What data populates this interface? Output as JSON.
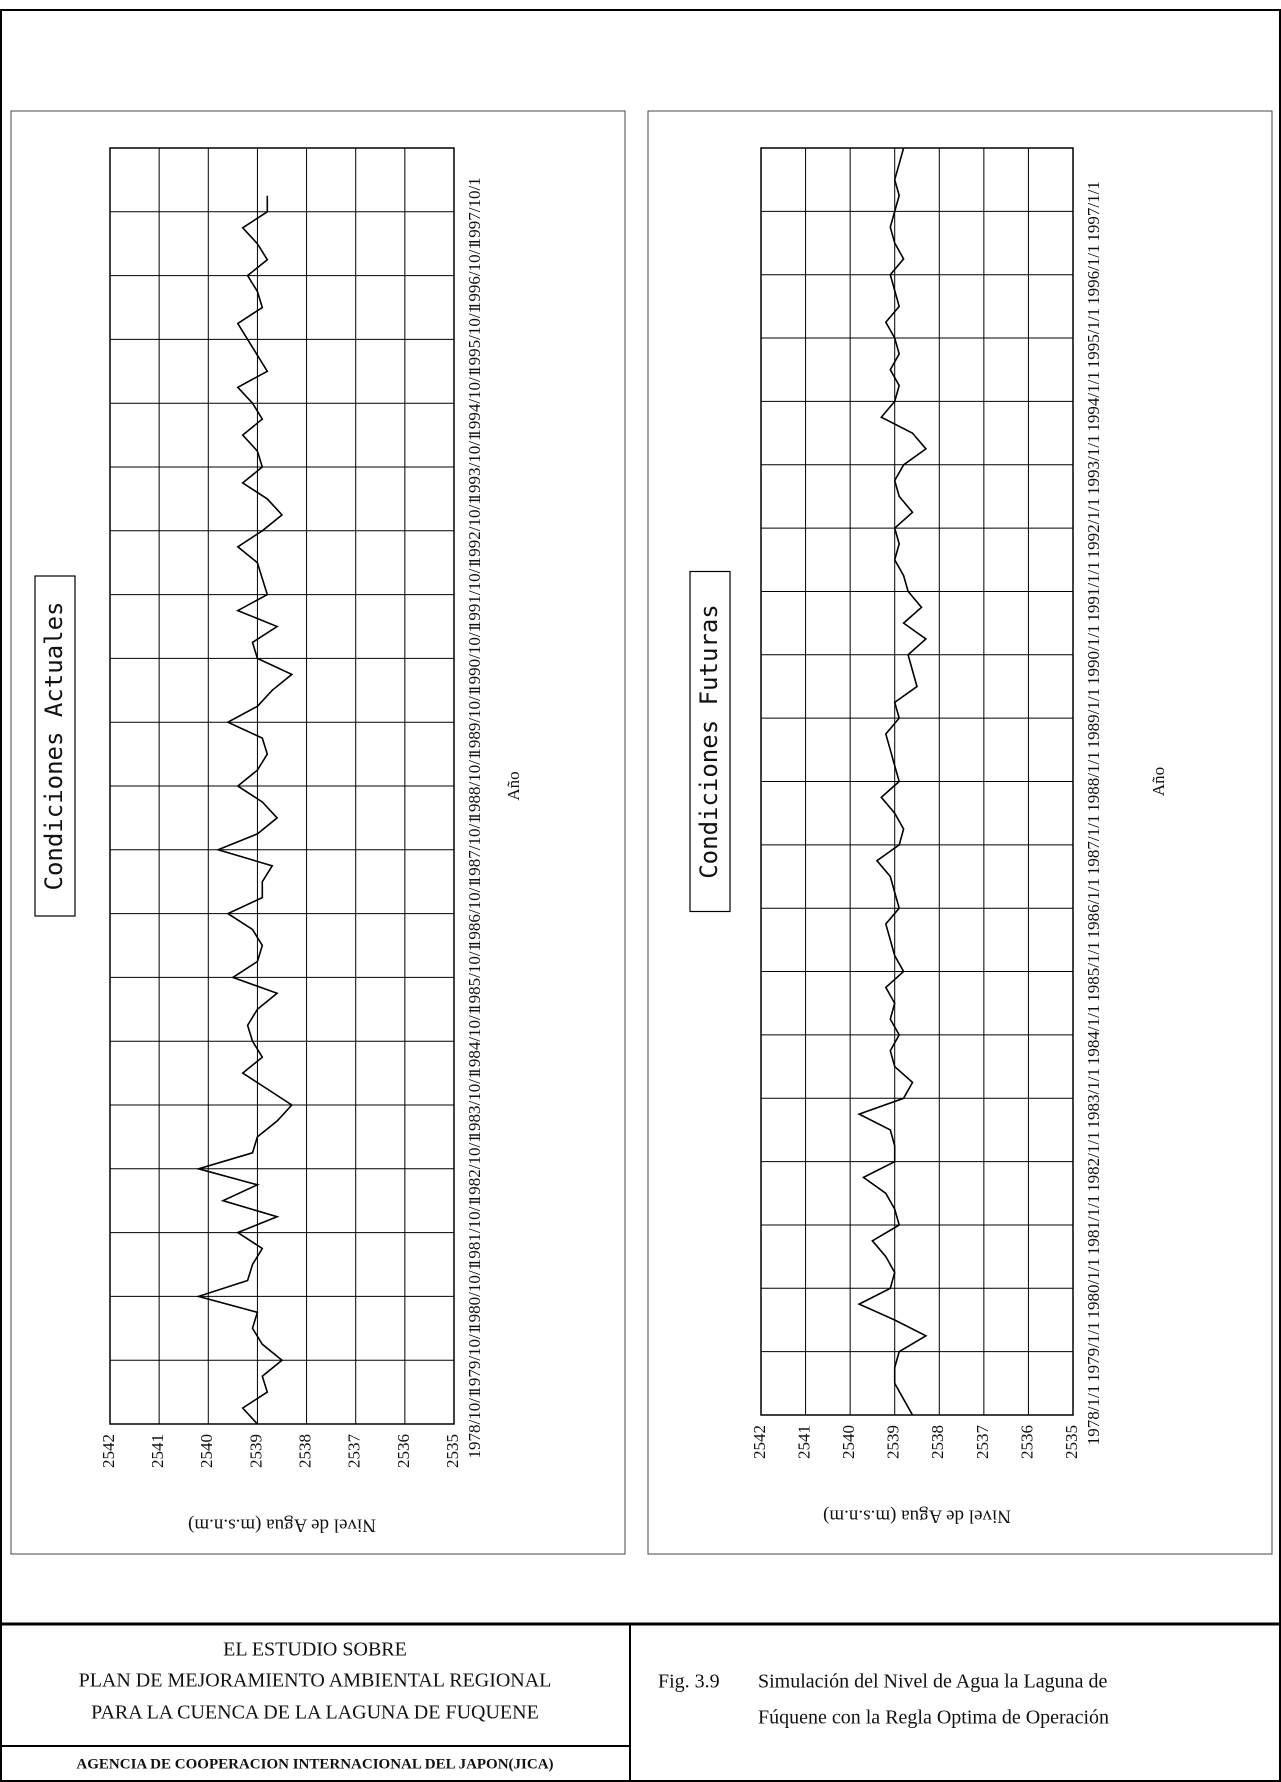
{
  "chart_data": [
    {
      "type": "line",
      "title": "Condiciones Actuales",
      "x_label": "Año",
      "y_label": "Nivel de Agua (m.s.n.m)",
      "color": "#000000",
      "grid": true,
      "xlim": [
        1978.75,
        1998.75
      ],
      "ylim": [
        2535,
        2542
      ],
      "yticks": [
        2535,
        2536,
        2537,
        2538,
        2539,
        2540,
        2541,
        2542
      ],
      "xticks": [
        {
          "value": 1978.75,
          "label": "1978/10/1"
        },
        {
          "value": 1979.75,
          "label": "1979/10/1"
        },
        {
          "value": 1980.75,
          "label": "1980/10/1"
        },
        {
          "value": 1981.75,
          "label": "1981/10/1"
        },
        {
          "value": 1982.75,
          "label": "1982/10/1"
        },
        {
          "value": 1983.75,
          "label": "1983/10/1"
        },
        {
          "value": 1984.75,
          "label": "1984/10/1"
        },
        {
          "value": 1985.75,
          "label": "1985/10/1"
        },
        {
          "value": 1986.75,
          "label": "1986/10/1"
        },
        {
          "value": 1987.75,
          "label": "1987/10/1"
        },
        {
          "value": 1988.75,
          "label": "1988/10/1"
        },
        {
          "value": 1989.75,
          "label": "1989/10/1"
        },
        {
          "value": 1990.75,
          "label": "1990/10/1"
        },
        {
          "value": 1991.75,
          "label": "1991/10/1"
        },
        {
          "value": 1992.75,
          "label": "1992/10/1"
        },
        {
          "value": 1993.75,
          "label": "1993/10/1"
        },
        {
          "value": 1994.75,
          "label": "1994/10/1"
        },
        {
          "value": 1995.75,
          "label": "1995/10/1"
        },
        {
          "value": 1996.75,
          "label": "1996/10/1"
        },
        {
          "value": 1997.75,
          "label": "1997/10/1"
        }
      ],
      "x": [
        1978.75,
        1979,
        1979.25,
        1979.5,
        1979.75,
        1980,
        1980.25,
        1980.5,
        1980.75,
        1981,
        1981.25,
        1981.5,
        1981.75,
        1982,
        1982.25,
        1982.5,
        1982.75,
        1983,
        1983.25,
        1983.5,
        1983.75,
        1984,
        1984.25,
        1984.5,
        1984.75,
        1985,
        1985.25,
        1985.5,
        1985.75,
        1986,
        1986.25,
        1986.5,
        1986.75,
        1987,
        1987.25,
        1987.5,
        1987.75,
        1988,
        1988.25,
        1988.5,
        1988.75,
        1989,
        1989.25,
        1989.5,
        1989.75,
        1990,
        1990.25,
        1990.5,
        1990.75,
        1991,
        1991.25,
        1991.5,
        1991.75,
        1992,
        1992.25,
        1992.5,
        1992.75,
        1993,
        1993.25,
        1993.5,
        1993.75,
        1994,
        1994.25,
        1994.5,
        1994.75,
        1995,
        1995.25,
        1995.5,
        1995.75,
        1996,
        1996.25,
        1996.5,
        1996.75,
        1997,
        1997.25,
        1997.5,
        1997.75,
        1998
      ],
      "values": [
        2539.0,
        2539.3,
        2538.8,
        2538.9,
        2538.5,
        2538.9,
        2539.1,
        2539.0,
        2540.2,
        2539.2,
        2539.1,
        2538.9,
        2539.4,
        2538.6,
        2539.7,
        2539.0,
        2540.2,
        2539.1,
        2539.0,
        2538.6,
        2538.3,
        2538.8,
        2539.3,
        2538.9,
        2539.1,
        2539.2,
        2539.0,
        2538.6,
        2539.5,
        2539.0,
        2538.9,
        2539.1,
        2539.6,
        2538.9,
        2538.9,
        2538.7,
        2539.8,
        2539.0,
        2538.6,
        2538.9,
        2539.4,
        2539.0,
        2538.8,
        2538.9,
        2539.6,
        2539.0,
        2538.7,
        2538.3,
        2539.0,
        2539.1,
        2538.6,
        2539.4,
        2538.8,
        2538.9,
        2539.0,
        2539.4,
        2538.9,
        2538.5,
        2538.8,
        2539.3,
        2538.9,
        2539.0,
        2539.3,
        2538.9,
        2539.1,
        2539.4,
        2538.8,
        2539.0,
        2539.2,
        2539.4,
        2538.9,
        2539.0,
        2539.2,
        2538.8,
        2539.0,
        2539.3,
        2538.8,
        2538.8
      ]
    },
    {
      "type": "line",
      "title": "Condiciones Futuras",
      "x_label": "Año",
      "y_label": "Nivel de Agua (m.s.n.m)",
      "color": "#000000",
      "grid": true,
      "xlim": [
        1978,
        1998
      ],
      "ylim": [
        2535,
        2542
      ],
      "yticks": [
        2535,
        2536,
        2537,
        2538,
        2539,
        2540,
        2541,
        2542
      ],
      "xticks": [
        {
          "value": 1978,
          "label": "1978/1/1"
        },
        {
          "value": 1979,
          "label": "1979/1/1"
        },
        {
          "value": 1980,
          "label": "1980/1/1"
        },
        {
          "value": 1981,
          "label": "1981/1/1"
        },
        {
          "value": 1982,
          "label": "1982/1/1"
        },
        {
          "value": 1983,
          "label": "1983/1/1"
        },
        {
          "value": 1984,
          "label": "1984/1/1"
        },
        {
          "value": 1985,
          "label": "1985/1/1"
        },
        {
          "value": 1986,
          "label": "1986/1/1"
        },
        {
          "value": 1987,
          "label": "1987/1/1"
        },
        {
          "value": 1988,
          "label": "1988/1/1"
        },
        {
          "value": 1989,
          "label": "1989/1/1"
        },
        {
          "value": 1990,
          "label": "1990/1/1"
        },
        {
          "value": 1991,
          "label": "1991/1/1"
        },
        {
          "value": 1992,
          "label": "1992/1/1"
        },
        {
          "value": 1993,
          "label": "1993/1/1"
        },
        {
          "value": 1994,
          "label": "1994/1/1"
        },
        {
          "value": 1995,
          "label": "1995/1/1"
        },
        {
          "value": 1996,
          "label": "1996/1/1"
        },
        {
          "value": 1997,
          "label": "1997/1/1"
        }
      ],
      "x": [
        1978,
        1978.25,
        1978.5,
        1978.75,
        1979,
        1979.25,
        1979.5,
        1979.75,
        1980,
        1980.25,
        1980.5,
        1980.75,
        1981,
        1981.25,
        1981.5,
        1981.75,
        1982,
        1982.25,
        1982.5,
        1982.75,
        1983,
        1983.25,
        1983.5,
        1983.75,
        1984,
        1984.25,
        1984.5,
        1984.75,
        1985,
        1985.25,
        1985.5,
        1985.75,
        1986,
        1986.25,
        1986.5,
        1986.75,
        1987,
        1987.25,
        1987.5,
        1987.75,
        1988,
        1988.25,
        1988.5,
        1988.75,
        1989,
        1989.25,
        1989.5,
        1989.75,
        1990,
        1990.25,
        1990.5,
        1990.75,
        1991,
        1991.25,
        1991.5,
        1991.75,
        1992,
        1992.25,
        1992.5,
        1992.75,
        1993,
        1993.25,
        1993.5,
        1993.75,
        1994,
        1994.25,
        1994.5,
        1994.75,
        1995,
        1995.25,
        1995.5,
        1995.75,
        1996,
        1996.25,
        1996.5,
        1996.75,
        1997,
        1997.25,
        1997.5,
        1997.75,
        1998
      ],
      "values": [
        2538.6,
        2538.8,
        2539.0,
        2539.0,
        2538.9,
        2538.3,
        2539.0,
        2539.8,
        2539.1,
        2539.0,
        2539.2,
        2539.5,
        2538.9,
        2539.0,
        2539.2,
        2539.7,
        2539.0,
        2539.0,
        2539.1,
        2539.8,
        2538.8,
        2538.6,
        2539.0,
        2539.1,
        2538.9,
        2539.1,
        2539.0,
        2539.2,
        2538.8,
        2539.0,
        2539.1,
        2539.2,
        2538.9,
        2539.0,
        2539.1,
        2539.4,
        2538.9,
        2538.8,
        2539.0,
        2539.3,
        2538.9,
        2539.0,
        2539.1,
        2539.2,
        2538.9,
        2539.0,
        2538.5,
        2538.6,
        2538.7,
        2538.3,
        2538.8,
        2538.4,
        2538.7,
        2538.8,
        2539.0,
        2538.9,
        2539.0,
        2538.6,
        2538.9,
        2539.0,
        2538.8,
        2538.3,
        2538.6,
        2539.3,
        2539.0,
        2538.9,
        2539.1,
        2538.9,
        2539.0,
        2539.2,
        2538.9,
        2539.0,
        2539.1,
        2538.8,
        2539.0,
        2539.1,
        2539.0,
        2538.9,
        2539.0,
        2538.9,
        2538.8
      ]
    }
  ],
  "footer": {
    "study": [
      "EL ESTUDIO SOBRE",
      "PLAN DE MEJORAMIENTO AMBIENTAL REGIONAL",
      "PARA LA CUENCA DE LA LAGUNA DE FUQUENE"
    ],
    "agency": "AGENCIA DE COOPERACION INTERNACIONAL DEL JAPON(JICA)",
    "figure_number": "Fig. 3.9",
    "caption": [
      "Simulación del Nivel de Agua la Laguna de",
      "Fúquene con la Regla Optima de Operación"
    ]
  }
}
